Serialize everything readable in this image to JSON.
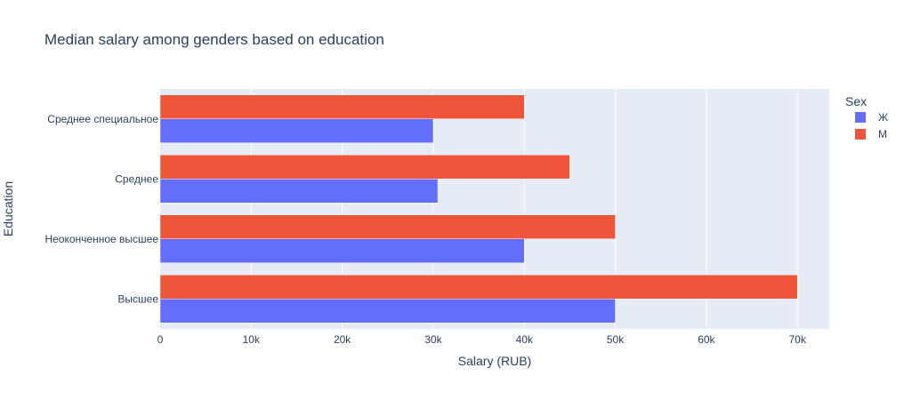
{
  "chart_data": {
    "type": "bar",
    "orientation": "horizontal",
    "title": "Median salary among genders based on education",
    "xlabel": "Salary (RUB)",
    "ylabel": "Education",
    "xlim": [
      0,
      73500
    ],
    "x_ticks": [
      0,
      10000,
      20000,
      30000,
      40000,
      50000,
      60000,
      70000
    ],
    "x_tick_labels": [
      "0",
      "10k",
      "20k",
      "30k",
      "40k",
      "50k",
      "60k",
      "70k"
    ],
    "categories": [
      "Высшее",
      "Неоконченное высшее",
      "Среднее",
      "Среднее специальное"
    ],
    "legend": {
      "title": "Sex",
      "position": "right"
    },
    "grid": true,
    "series": [
      {
        "name": "Ж",
        "color": "#636efa",
        "values": [
          50000,
          40000,
          30500,
          30000
        ]
      },
      {
        "name": "М",
        "color": "#ef553b",
        "values": [
          70000,
          50000,
          45000,
          40000
        ]
      }
    ]
  }
}
